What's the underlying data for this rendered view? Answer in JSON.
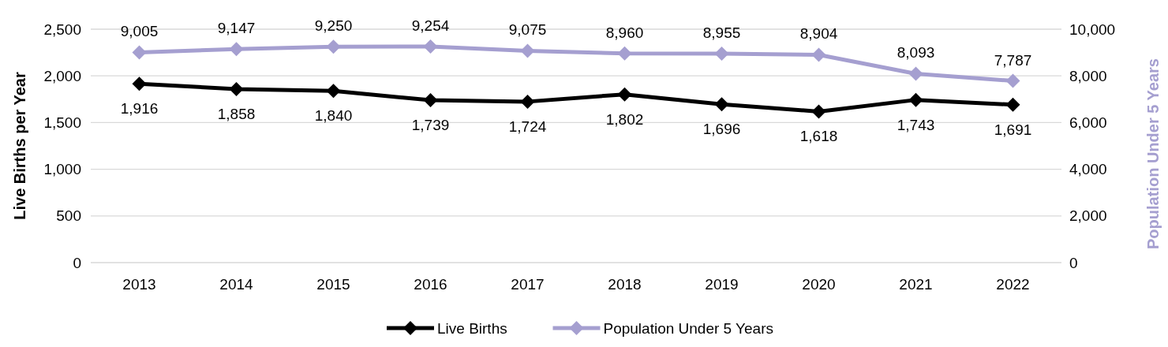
{
  "chart_data": {
    "type": "line",
    "ylabel": "Live Births per Year",
    "y2label": "Population Under 5 Years",
    "categories": [
      "2013",
      "2014",
      "2015",
      "2016",
      "2017",
      "2018",
      "2019",
      "2020",
      "2021",
      "2022"
    ],
    "series": [
      {
        "name": "Live Births",
        "color": "#000000",
        "values": [
          1916,
          1858,
          1840,
          1739,
          1724,
          1802,
          1696,
          1618,
          1743,
          1691
        ],
        "value_labels": [
          "1,916",
          "1,858",
          "1,840",
          "1,739",
          "1,724",
          "1,802",
          "1,696",
          "1,618",
          "1,743",
          "1,691"
        ]
      },
      {
        "name": "Population Under 5 Years",
        "color": "#a59fd0",
        "axis": "y2",
        "values": [
          9005,
          9147,
          9250,
          9254,
          9075,
          8960,
          8955,
          8904,
          8093,
          7787
        ],
        "value_labels": [
          "9,005",
          "9,147",
          "9,250",
          "9,254",
          "9,075",
          "8,960",
          "8,955",
          "8,904",
          "8,093",
          "7,787"
        ]
      }
    ],
    "ylim": [
      0,
      2500
    ],
    "yticks": [
      0,
      {
        "value": 500,
        "label": "500"
      },
      {
        "value": 1000,
        "label": "1,000"
      },
      {
        "value": 1500,
        "label": "1,500"
      },
      {
        "value": 2000,
        "label": "2,000"
      },
      {
        "value": 2500,
        "label": "2,500"
      }
    ],
    "y2lim": [
      0,
      10000
    ],
    "y2ticks": [
      0,
      {
        "value": 2000,
        "label": "2,000"
      },
      {
        "value": 4000,
        "label": "4,000"
      },
      {
        "value": 6000,
        "label": "6,000"
      },
      {
        "value": 8000,
        "label": "8,000"
      },
      {
        "value": 10000,
        "label": "10,000"
      }
    ],
    "grid": "y",
    "legend": "bottom",
    "marker": "diamond",
    "line_style": "solid"
  }
}
